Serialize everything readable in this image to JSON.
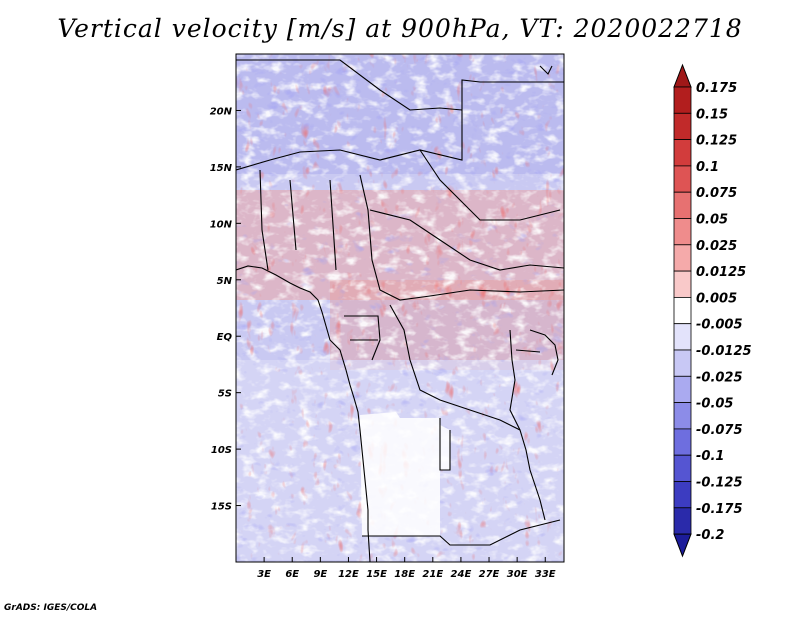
{
  "title": "Vertical velocity [m/s] at 900hPa, VT: 2020022718",
  "credit": "GrADS: IGES/COLA",
  "map": {
    "lon_range": [
      0,
      35
    ],
    "lat_range": [
      -20,
      25
    ],
    "lat_ticks": [
      {
        "value": 20,
        "label": "20N"
      },
      {
        "value": 15,
        "label": "15N"
      },
      {
        "value": 10,
        "label": "10N"
      },
      {
        "value": 5,
        "label": "5N"
      },
      {
        "value": 0,
        "label": "EQ"
      },
      {
        "value": -5,
        "label": "5S"
      },
      {
        "value": -10,
        "label": "10S"
      },
      {
        "value": -15,
        "label": "15S"
      }
    ],
    "lon_ticks": [
      {
        "value": 3,
        "label": "3E"
      },
      {
        "value": 6,
        "label": "6E"
      },
      {
        "value": 9,
        "label": "9E"
      },
      {
        "value": 12,
        "label": "12E"
      },
      {
        "value": 15,
        "label": "15E"
      },
      {
        "value": 18,
        "label": "18E"
      },
      {
        "value": 21,
        "label": "21E"
      },
      {
        "value": 24,
        "label": "24E"
      },
      {
        "value": 27,
        "label": "27E"
      },
      {
        "value": 30,
        "label": "30E"
      },
      {
        "value": 33,
        "label": "33E"
      }
    ]
  },
  "colorbar": {
    "levels": [
      {
        "label": "0.175",
        "color": "#b21e1e"
      },
      {
        "label": "0.15",
        "color": "#c12a2a"
      },
      {
        "label": "0.125",
        "color": "#d23c3c"
      },
      {
        "label": "0.1",
        "color": "#de5454"
      },
      {
        "label": "0.075",
        "color": "#e77171"
      },
      {
        "label": "0.05",
        "color": "#ef8c8c"
      },
      {
        "label": "0.025",
        "color": "#f5aaaa"
      },
      {
        "label": "0.0125",
        "color": "#f9c9c9"
      },
      {
        "label": "0.005",
        "color": "#fde5e5"
      },
      {
        "label": "-0.005",
        "color": "#ffffff"
      },
      {
        "label": "-0.0125",
        "color": "#e3e3fb"
      },
      {
        "label": "-0.025",
        "color": "#c8c8f5"
      },
      {
        "label": "-0.05",
        "color": "#aaaaf0"
      },
      {
        "label": "-0.075",
        "color": "#8c8ce8"
      },
      {
        "label": "-0.1",
        "color": "#6e6edf"
      },
      {
        "label": "-0.125",
        "color": "#5555d2"
      },
      {
        "label": "-0.175",
        "color": "#3c3cc1"
      },
      {
        "label": "-0.2",
        "color": "#2a2aaa"
      }
    ],
    "top_cap_color": "#a01818",
    "bottom_cap_color": "#1c1c9a"
  }
}
